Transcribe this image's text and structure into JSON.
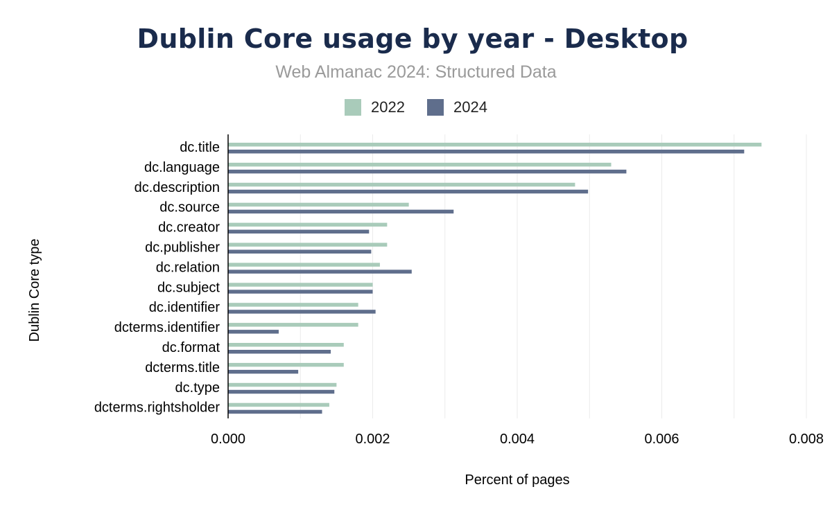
{
  "chart_data": {
    "type": "bar",
    "orientation": "horizontal",
    "title": "Dublin Core usage by year - Desktop",
    "subtitle": "Web Almanac 2024: Structured Data",
    "xlabel": "Percent of pages",
    "ylabel": "Dublin Core type",
    "xlim": [
      0,
      0.008
    ],
    "xticks": [
      "0.000",
      "0.002",
      "0.004",
      "0.006",
      "0.008"
    ],
    "grid": true,
    "legend_position": "top",
    "categories": [
      "dc.title",
      "dc.language",
      "dc.description",
      "dc.source",
      "dc.creator",
      "dc.publisher",
      "dc.relation",
      "dc.subject",
      "dc.identifier",
      "dcterms.identifier",
      "dc.format",
      "dcterms.title",
      "dc.type",
      "dcterms.rightsholder"
    ],
    "series": [
      {
        "name": "2022",
        "color": "#a9cbba",
        "values": [
          0.00738,
          0.0053,
          0.0048,
          0.0025,
          0.0022,
          0.0022,
          0.0021,
          0.002,
          0.0018,
          0.0018,
          0.0016,
          0.0016,
          0.0015,
          0.0014
        ]
      },
      {
        "name": "2024",
        "color": "#5f6e8c",
        "values": [
          0.00714,
          0.00551,
          0.00498,
          0.00312,
          0.00195,
          0.00198,
          0.00254,
          0.002,
          0.00204,
          0.0007,
          0.00142,
          0.00097,
          0.00147,
          0.0013
        ]
      }
    ]
  }
}
